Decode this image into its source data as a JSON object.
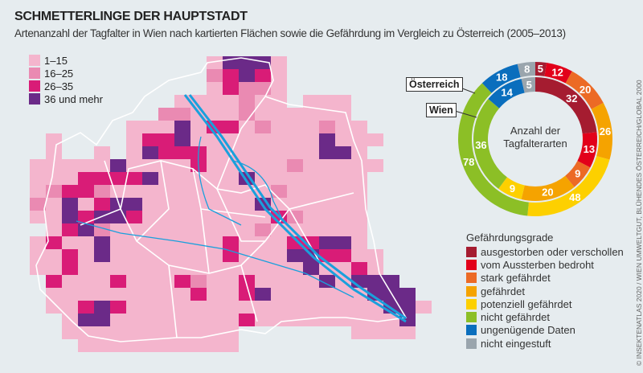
{
  "title": "SCHMETTERLINGE DER HAUPTSTADT",
  "subtitle": "Artenanzahl der Tagfalter in Wien nach kartierten Flächen sowie die Gefährdung im Vergleich zu Österreich (2005–2013)",
  "credit": "© INSEKTENATLAS 2020 / WIEN UMWELTGUT, BLÜHENDES ÖSTERREICH/GLOBAL 2000",
  "map_legend": [
    {
      "label": "1–15",
      "color": "#f4b5cd"
    },
    {
      "label": "16–25",
      "color": "#ea8ab2"
    },
    {
      "label": "26–35",
      "color": "#d91c77"
    },
    {
      "label": "36 und mehr",
      "color": "#6b2a88"
    }
  ],
  "map_grid": [
    "...........14441.........",
    "...........23431.........",
    "...........13221.........",
    ".........1111211.111.....",
    "........221112111111.....",
    "......111413312111211....",
    ".1....1334111111114111...",
    ".1..1.143331111111441....",
    "1111141111311111211111...",
    "111333341111141111111....",
    "123321111111111211111....",
    "214134411111114111111....",
    "114344311111111321111....",
    ".13421111111112111111....",
    "131141111111311133441....",
    "1131411111113111443311...",
    "1131111111111111141131...",
    ".3111311132113111141444..",
    ".11111111131134111111444.",
    ".113431111111111111111441",
    "..1441111111131111111114.",
    "..11111111111.......1111.",
    "...1111111111............"
  ],
  "chart_data": {
    "type": "pie",
    "center_label": "Anzahl der Tagfalterarten",
    "legend_title": "Gefährdungsgrade",
    "categories": [
      "ausgestorben oder verschollen",
      "vom Aussterben bedroht",
      "stark gefährdet",
      "gefährdet",
      "potenziell gefährdet",
      "nicht gefährdet",
      "ungenügende Daten",
      "nicht eingestuft"
    ],
    "colors": [
      "#a51c30",
      "#e2001a",
      "#ec6a25",
      "#f5a300",
      "#fdd000",
      "#8cbf26",
      "#0a6ebd",
      "#9aa5ad"
    ],
    "series": [
      {
        "name": "Österreich",
        "values": [
          5,
          12,
          20,
          26,
          48,
          78,
          18,
          8
        ]
      },
      {
        "name": "Wien",
        "values": [
          32,
          13,
          9,
          20,
          9,
          36,
          14,
          5
        ]
      }
    ]
  }
}
